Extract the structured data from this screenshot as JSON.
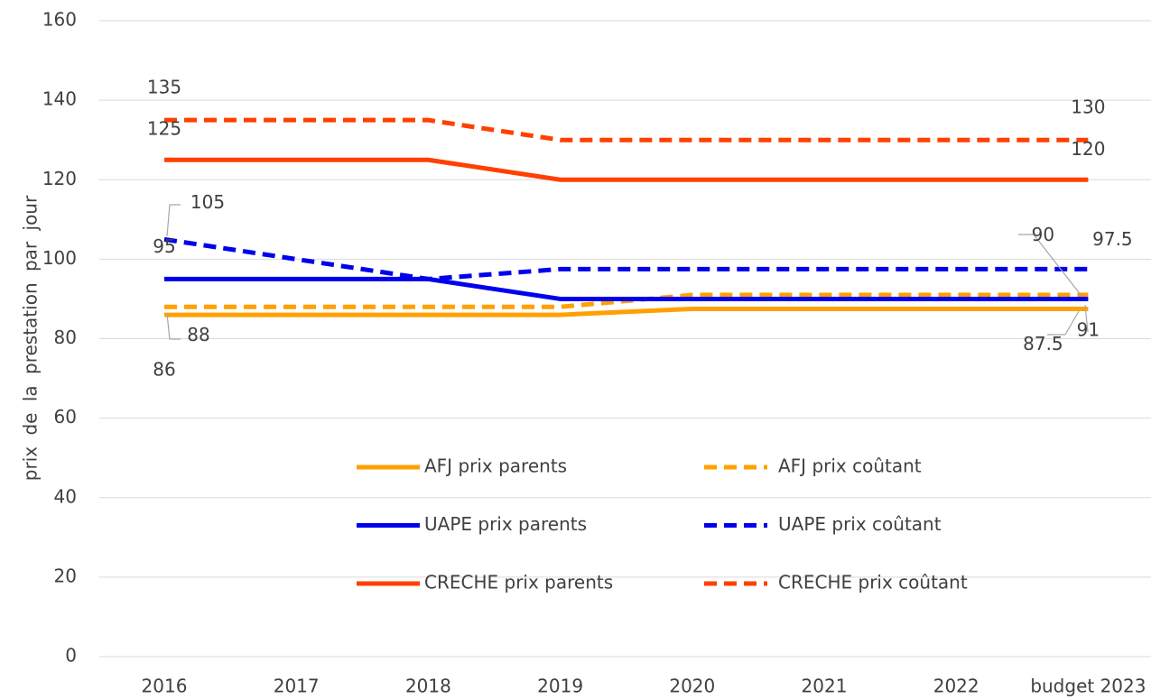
{
  "chart_data": {
    "type": "line",
    "ylabel": "prix de la prestation par jour",
    "categories": [
      "2016",
      "2017",
      "2018",
      "2019",
      "2020",
      "2021",
      "2022",
      "budget 2023"
    ],
    "series": [
      {
        "name": "AFJ prix parents",
        "color": "#ffa000",
        "linestyle": "solid",
        "values": [
          86,
          86,
          86,
          86,
          87.5,
          87.5,
          87.5,
          87.5
        ]
      },
      {
        "name": "AFJ prix coûtant",
        "color": "#ffa000",
        "linestyle": "dashed",
        "values": [
          88,
          88,
          88,
          88,
          91,
          91,
          91,
          91
        ]
      },
      {
        "name": "UAPE prix parents",
        "color": "#0000ee",
        "linestyle": "solid",
        "values": [
          95,
          95,
          95,
          90,
          90,
          90,
          90,
          90
        ]
      },
      {
        "name": "UAPE prix coûtant",
        "color": "#0000ee",
        "linestyle": "dashed",
        "values": [
          105,
          100,
          95,
          97.5,
          97.5,
          97.5,
          97.5,
          97.5
        ]
      },
      {
        "name": "CRECHE prix parents",
        "color": "#ff4000",
        "linestyle": "solid",
        "values": [
          125,
          125,
          125,
          120,
          120,
          120,
          120,
          120
        ]
      },
      {
        "name": "CRECHE prix coûtant",
        "color": "#ff4000",
        "linestyle": "dashed",
        "values": [
          135,
          135,
          135,
          130,
          130,
          130,
          130,
          130
        ]
      }
    ],
    "ylim": [
      0,
      160
    ],
    "yticks": [
      0,
      20,
      40,
      60,
      80,
      100,
      120,
      140,
      160
    ],
    "grid": true,
    "legend": "center"
  }
}
